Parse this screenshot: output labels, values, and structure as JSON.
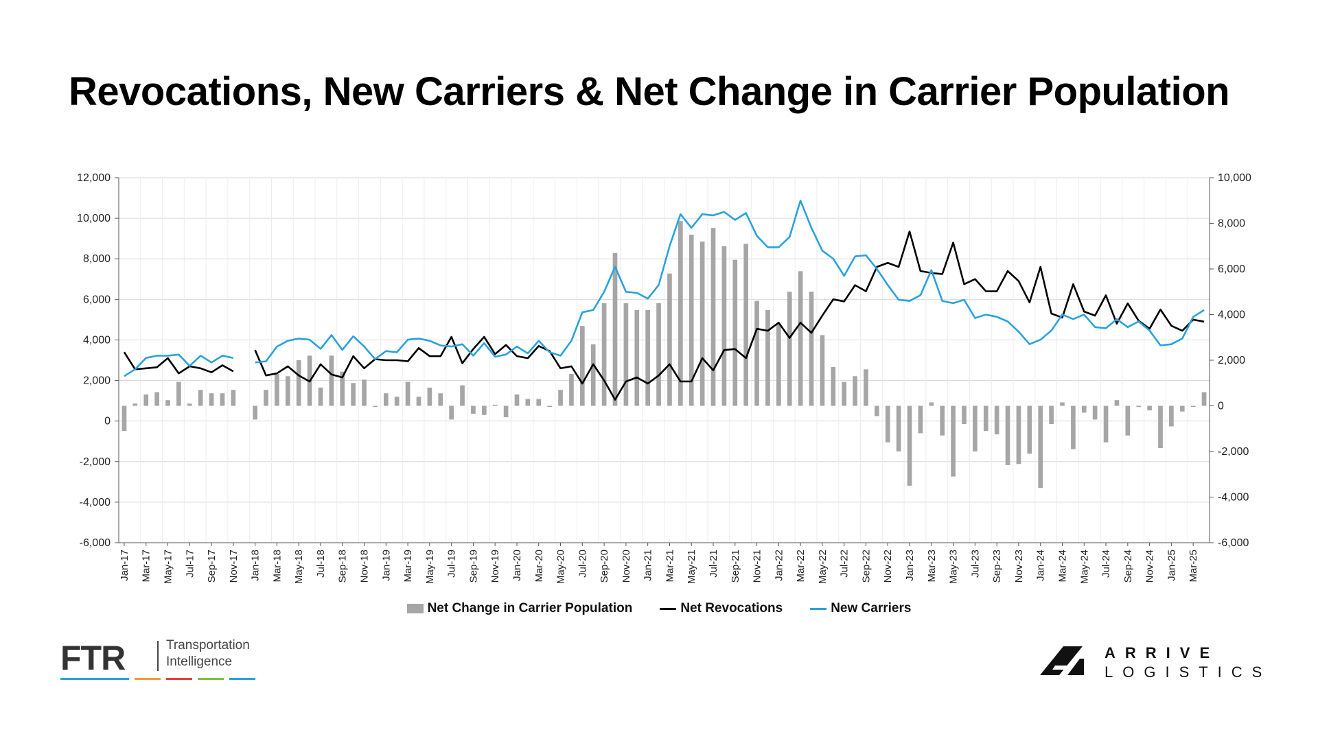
{
  "title": "Revocations, New Carriers & Net Change in Carrier Population",
  "colors": {
    "bar": "#a6a6a6",
    "revocations": "#000000",
    "new_carriers": "#29a3dd",
    "grid": "#d9d9d9"
  },
  "legend": [
    {
      "label": "Net Change in Carrier Population",
      "kind": "bar",
      "color": "#a6a6a6"
    },
    {
      "label": "Net Revocations",
      "kind": "line",
      "color": "#000000"
    },
    {
      "label": "New Carriers",
      "kind": "line",
      "color": "#29a3dd"
    }
  ],
  "logos": {
    "ftr": {
      "name": "FTR",
      "line1": "Transportation",
      "line2": "Intelligence",
      "stripes": [
        "#29a3dd",
        "#f39a3d",
        "#e2413b",
        "#7cc242",
        "#29a3dd"
      ]
    },
    "arrive": {
      "line1": "ARRIVE",
      "line2": "LOGISTICS"
    }
  },
  "chart_data": {
    "type": "bar+line",
    "left_axis": {
      "min": -6000,
      "max": 12000,
      "step": 2000,
      "ticks": [
        "-6,000",
        "-4,000",
        "-2,000",
        "0",
        "2,000",
        "4,000",
        "6,000",
        "8,000",
        "10,000",
        "12,000"
      ]
    },
    "right_axis": {
      "min": -6000,
      "max": 10000,
      "step": 2000,
      "ticks": [
        "-6,000",
        "-4,000",
        "-2,000",
        "0",
        "2,000",
        "4,000",
        "6,000",
        "8,000",
        "10,000"
      ]
    },
    "grid": true,
    "legend_position": "bottom",
    "x_tick_labels": [
      "Jan-17",
      "Mar-17",
      "May-17",
      "Jul-17",
      "Sep-17",
      "Nov-17",
      "Jan-18",
      "Mar-18",
      "May-18",
      "Jul-18",
      "Sep-18",
      "Nov-18",
      "Jan-19",
      "Mar-19",
      "May-19",
      "Jul-19",
      "Sep-19",
      "Nov-19",
      "Jan-20",
      "Mar-20",
      "May-20",
      "Jul-20",
      "Sep-20",
      "Nov-20",
      "Jan-21",
      "Mar-21",
      "May-21",
      "Jul-21",
      "Sep-21",
      "Nov-21",
      "Jan-22",
      "Mar-22",
      "May-22",
      "Jul-22",
      "Sep-22",
      "Nov-22",
      "Jan-23",
      "Mar-23",
      "May-23",
      "Jul-23",
      "Sep-23",
      "Nov-23",
      "Jan-24",
      "Mar-24",
      "May-24",
      "Jul-24",
      "Sep-24",
      "Nov-24",
      "Jan-25",
      "Mar-25"
    ],
    "categories": [
      "Jan-17",
      "Feb-17",
      "Mar-17",
      "Apr-17",
      "May-17",
      "Jun-17",
      "Jul-17",
      "Aug-17",
      "Sep-17",
      "Oct-17",
      "Nov-17",
      "Dec-17",
      "Jan-18",
      "Feb-18",
      "Mar-18",
      "Apr-18",
      "May-18",
      "Jun-18",
      "Jul-18",
      "Aug-18",
      "Sep-18",
      "Oct-18",
      "Nov-18",
      "Dec-18",
      "Jan-19",
      "Feb-19",
      "Mar-19",
      "Apr-19",
      "May-19",
      "Jun-19",
      "Jul-19",
      "Aug-19",
      "Sep-19",
      "Oct-19",
      "Nov-19",
      "Dec-19",
      "Jan-20",
      "Feb-20",
      "Mar-20",
      "Apr-20",
      "May-20",
      "Jun-20",
      "Jul-20",
      "Aug-20",
      "Sep-20",
      "Oct-20",
      "Nov-20",
      "Dec-20",
      "Jan-21",
      "Feb-21",
      "Mar-21",
      "Apr-21",
      "May-21",
      "Jun-21",
      "Jul-21",
      "Aug-21",
      "Sep-21",
      "Oct-21",
      "Nov-21",
      "Dec-21",
      "Jan-22",
      "Feb-22",
      "Mar-22",
      "Apr-22",
      "May-22",
      "Jun-22",
      "Jul-22",
      "Aug-22",
      "Sep-22",
      "Oct-22",
      "Nov-22",
      "Dec-22",
      "Jan-23",
      "Feb-23",
      "Mar-23",
      "Apr-23",
      "May-23",
      "Jun-23",
      "Jul-23",
      "Aug-23",
      "Sep-23",
      "Oct-23",
      "Nov-23",
      "Dec-23",
      "Jan-24",
      "Feb-24",
      "Mar-24",
      "Apr-24",
      "May-24",
      "Jun-24",
      "Jul-24",
      "Aug-24",
      "Sep-24",
      "Oct-24",
      "Nov-24",
      "Dec-24",
      "Jan-25",
      "Feb-25",
      "Mar-25",
      "Apr-25"
    ],
    "series": [
      {
        "name": "Net Change in Carrier Population",
        "kind": "bar",
        "axis": "right",
        "values": [
          -1100,
          100,
          500,
          600,
          250,
          1050,
          100,
          700,
          550,
          550,
          700,
          null,
          -600,
          700,
          1400,
          1300,
          2000,
          2200,
          800,
          2200,
          1500,
          1000,
          1150,
          -50,
          550,
          400,
          1050,
          400,
          800,
          550,
          -600,
          900,
          -350,
          -400,
          50,
          -500,
          500,
          300,
          300,
          -50,
          700,
          1400,
          3500,
          2700,
          4500,
          6700,
          4500,
          4200,
          4200,
          4500,
          5800,
          8100,
          7500,
          7200,
          7800,
          7000,
          6400,
          7100,
          4600,
          4200,
          3600,
          5000,
          5900,
          5000,
          3100,
          1700,
          1050,
          1300,
          1600,
          -450,
          -1600,
          -2000,
          -3500,
          -1200,
          150,
          -1300,
          -3100,
          -800,
          -2000,
          -1100,
          -1250,
          -2600,
          -2550,
          -2100,
          -3600,
          -800,
          150,
          -1900,
          -300,
          -600,
          -1600,
          250,
          -1300,
          -50,
          -200,
          -1850,
          -900,
          -250,
          -50,
          600
        ]
      },
      {
        "name": "Net Revocations",
        "kind": "line",
        "axis": "left",
        "values": [
          3400,
          2550,
          2600,
          2650,
          3100,
          2350,
          2700,
          2600,
          2400,
          2750,
          2450,
          null,
          3500,
          2250,
          2350,
          2700,
          2250,
          1950,
          2800,
          2300,
          2150,
          3200,
          2600,
          3050,
          3000,
          3000,
          2950,
          3600,
          3200,
          3200,
          4150,
          2850,
          3550,
          4150,
          3300,
          3750,
          3200,
          3100,
          3700,
          3450,
          2600,
          2700,
          1850,
          2800,
          2000,
          1050,
          1950,
          2150,
          1850,
          2250,
          2800,
          1950,
          1950,
          3100,
          2500,
          3500,
          3550,
          3100,
          4550,
          4450,
          4850,
          4100,
          4850,
          4350,
          5200,
          6000,
          5900,
          6700,
          6400,
          7600,
          7800,
          7600,
          9350,
          7400,
          7300,
          7250,
          8800,
          6750,
          7000,
          6400,
          6400,
          7400,
          6900,
          5850,
          7600,
          5300,
          5100,
          6750,
          5400,
          5200,
          6200,
          4800,
          5800,
          4950,
          4550,
          5500,
          4700,
          4450,
          5000,
          4900
        ]
      },
      {
        "name": "New Carriers",
        "kind": "line",
        "axis": "right",
        "values": [
          1300,
          1600,
          2100,
          2200,
          2200,
          2250,
          1750,
          2200,
          1900,
          2200,
          2100,
          null,
          1900,
          1950,
          2600,
          2850,
          2950,
          2900,
          2500,
          3100,
          2450,
          3050,
          2600,
          2050,
          2400,
          2350,
          2900,
          2950,
          2850,
          2650,
          2600,
          2700,
          2200,
          2750,
          2150,
          2250,
          2600,
          2300,
          2850,
          2350,
          2200,
          2850,
          4100,
          4200,
          5000,
          6100,
          5000,
          4950,
          4700,
          5300,
          7000,
          8400,
          7800,
          8400,
          8350,
          8500,
          8150,
          8450,
          7450,
          6950,
          6950,
          7400,
          9000,
          7800,
          6800,
          6450,
          5700,
          6550,
          6600,
          6000,
          5300,
          4650,
          4600,
          4850,
          5950,
          4600,
          4500,
          4650,
          3850,
          4000,
          3900,
          3700,
          3250,
          2700,
          2900,
          3300,
          4000,
          3800,
          4000,
          3450,
          3400,
          3800,
          3450,
          3700,
          3300,
          2650,
          2700,
          2950,
          3900,
          4200
        ]
      }
    ]
  }
}
